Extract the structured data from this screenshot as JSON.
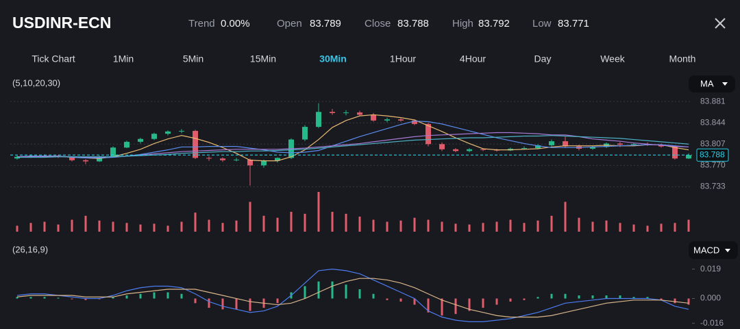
{
  "header": {
    "symbol": "USDINR-ECN",
    "stats": [
      {
        "label": "Trend",
        "value": "0.00%"
      },
      {
        "label": "Open",
        "value": "83.789"
      },
      {
        "label": "Close",
        "value": "83.788"
      },
      {
        "label": "High",
        "value": "83.792"
      },
      {
        "label": "Low",
        "value": "83.771"
      }
    ],
    "timeframes": [
      "Tick Chart",
      "1Min",
      "5Min",
      "15Min",
      "30Min",
      "1Hour",
      "4Hour",
      "Day",
      "Week",
      "Month"
    ],
    "active_timeframe": 4
  },
  "chart_data": [
    {
      "type": "candlestick",
      "params": "(5,10,20,30)",
      "indicator": "MA",
      "up_color": "#26b98a",
      "down_color": "#e05c6a",
      "grid": true,
      "ylim": [
        83.712,
        83.905
      ],
      "yticks": [
        83.881,
        83.844,
        83.807,
        {
          "value": 83.77,
          "label": "83.770"
        },
        83.733
      ],
      "price_marker": 83.788,
      "open": [
        83.782,
        83.785,
        83.787,
        83.786,
        83.785,
        83.779,
        83.777,
        83.785,
        83.801,
        83.811,
        83.816,
        83.825,
        83.829,
        83.83,
        83.783,
        83.782,
        83.779,
        83.78,
        83.77,
        83.778,
        83.783,
        83.815,
        83.837,
        83.863,
        83.861,
        83.862,
        83.858,
        83.848,
        83.85,
        83.848,
        83.842,
        83.807,
        83.798,
        83.795,
        83.798,
        83.797,
        83.796,
        83.799,
        83.8,
        83.805,
        83.812,
        83.803,
        83.799,
        83.802,
        83.808,
        83.806,
        83.807,
        83.806,
        83.803,
        83.782
      ],
      "high": [
        83.787,
        83.789,
        83.789,
        83.788,
        83.786,
        83.781,
        83.787,
        83.803,
        83.813,
        83.818,
        83.827,
        83.831,
        83.833,
        83.832,
        83.786,
        83.784,
        83.783,
        83.782,
        83.78,
        83.784,
        83.817,
        83.84,
        83.878,
        83.868,
        83.866,
        83.865,
        83.861,
        83.853,
        83.852,
        83.85,
        83.844,
        83.81,
        83.8,
        83.8,
        83.8,
        83.799,
        83.801,
        83.803,
        83.807,
        83.815,
        83.82,
        83.806,
        83.804,
        83.81,
        83.811,
        83.809,
        83.81,
        83.808,
        83.805,
        83.791
      ],
      "low": [
        83.78,
        83.783,
        83.784,
        83.783,
        83.777,
        83.772,
        83.776,
        83.784,
        83.8,
        83.808,
        83.814,
        83.822,
        83.826,
        83.781,
        83.778,
        83.776,
        83.777,
        83.735,
        83.766,
        83.775,
        83.781,
        83.812,
        83.835,
        83.858,
        83.857,
        83.856,
        83.846,
        83.845,
        83.846,
        83.84,
        83.803,
        83.795,
        83.793,
        83.793,
        83.795,
        83.794,
        83.795,
        83.797,
        83.798,
        83.803,
        83.8,
        83.796,
        83.797,
        83.8,
        83.802,
        83.804,
        83.804,
        83.801,
        83.78,
        83.781
      ],
      "close": [
        83.785,
        83.787,
        83.786,
        83.785,
        83.779,
        83.777,
        83.785,
        83.801,
        83.811,
        83.816,
        83.825,
        83.829,
        83.83,
        83.783,
        83.782,
        83.779,
        83.78,
        83.77,
        83.778,
        83.783,
        83.815,
        83.837,
        83.863,
        83.861,
        83.862,
        83.858,
        83.848,
        83.85,
        83.848,
        83.842,
        83.807,
        83.798,
        83.795,
        83.798,
        83.797,
        83.796,
        83.799,
        83.8,
        83.805,
        83.812,
        83.803,
        83.799,
        83.802,
        83.808,
        83.806,
        83.807,
        83.806,
        83.803,
        83.782,
        83.788
      ],
      "series": [
        {
          "color": "#e9b872",
          "values": [
            83.785,
            83.786,
            83.786,
            83.786,
            83.784,
            83.783,
            83.782,
            83.785,
            83.791,
            83.798,
            83.808,
            83.816,
            83.822,
            83.817,
            83.81,
            83.801,
            83.791,
            83.779,
            83.778,
            83.778,
            83.785,
            83.797,
            83.815,
            83.836,
            83.848,
            83.856,
            83.858,
            83.856,
            83.853,
            83.849,
            83.839,
            83.829,
            83.818,
            83.808,
            83.799,
            83.797,
            83.797,
            83.798,
            83.799,
            83.802,
            83.804,
            83.804,
            83.804,
            83.805,
            83.804,
            83.804,
            83.806,
            83.806,
            83.801,
            83.797
          ]
        },
        {
          "color": "#5b8def",
          "values": [
            83.785,
            83.786,
            83.786,
            83.786,
            83.784,
            83.783,
            83.783,
            83.784,
            83.786,
            83.789,
            83.793,
            83.797,
            83.802,
            83.802,
            83.803,
            83.803,
            83.803,
            83.8,
            83.797,
            83.793,
            83.792,
            83.793,
            83.796,
            83.804,
            83.812,
            83.82,
            83.827,
            83.834,
            83.841,
            83.847,
            83.846,
            83.842,
            83.836,
            83.83,
            83.824,
            83.818,
            83.813,
            83.808,
            83.804,
            83.801,
            83.801,
            83.801,
            83.802,
            83.803,
            83.804,
            83.805,
            83.806,
            83.806,
            83.804,
            83.802
          ]
        },
        {
          "color": "#a77bd5",
          "values": [
            83.785,
            83.785,
            83.785,
            83.786,
            83.785,
            83.784,
            83.784,
            83.785,
            83.786,
            83.788,
            83.79,
            83.792,
            83.794,
            83.795,
            83.796,
            83.797,
            83.798,
            83.798,
            83.798,
            83.798,
            83.799,
            83.8,
            83.802,
            83.804,
            83.806,
            83.808,
            83.811,
            83.814,
            83.817,
            83.82,
            83.822,
            83.823,
            83.824,
            83.825,
            83.826,
            83.827,
            83.827,
            83.826,
            83.825,
            83.823,
            83.823,
            83.82,
            83.816,
            83.814,
            83.812,
            83.809,
            83.807,
            83.805,
            83.803,
            83.802
          ]
        },
        {
          "color": "#4fb3c8",
          "values": [
            83.784,
            83.784,
            83.784,
            83.785,
            83.785,
            83.785,
            83.785,
            83.785,
            83.786,
            83.787,
            83.788,
            83.789,
            83.791,
            83.792,
            83.793,
            83.794,
            83.794,
            83.795,
            83.795,
            83.796,
            83.797,
            83.798,
            83.8,
            83.802,
            83.804,
            83.806,
            83.808,
            83.81,
            83.812,
            83.814,
            83.815,
            83.816,
            83.817,
            83.818,
            83.818,
            83.819,
            83.82,
            83.821,
            83.821,
            83.822,
            83.821,
            83.82,
            83.819,
            83.818,
            83.817,
            83.815,
            83.813,
            83.811,
            83.809,
            83.807
          ]
        }
      ]
    },
    {
      "type": "bar",
      "color": "#e05c6a",
      "ylim": [
        0,
        100
      ],
      "values": [
        15,
        22,
        25,
        18,
        30,
        40,
        28,
        25,
        22,
        18,
        20,
        15,
        25,
        48,
        30,
        22,
        28,
        75,
        40,
        35,
        50,
        45,
        100,
        50,
        45,
        38,
        30,
        25,
        28,
        35,
        30,
        25,
        20,
        18,
        22,
        25,
        30,
        22,
        28,
        40,
        75,
        35,
        25,
        28,
        22,
        18,
        15,
        20,
        22,
        30
      ]
    },
    {
      "type": "macd",
      "params": "(26,16,9)",
      "indicator": "MACD",
      "up_color": "#26b98a",
      "down_color": "#e05c6a",
      "ylim": [
        -0.0197,
        0.0246
      ],
      "yticks": [
        0.019,
        {
          "value": 0,
          "label": "0.000"
        },
        -0.016
      ],
      "histogram": [
        0.001,
        0.001,
        0.001,
        0.0005,
        -0.0005,
        -0.001,
        -0.0005,
        0.001,
        0.002,
        0.003,
        0.004,
        0.004,
        0.003,
        -0.003,
        -0.006,
        -0.007,
        -0.007,
        -0.008,
        -0.006,
        -0.003,
        0.004,
        0.008,
        0.011,
        0.011,
        0.009,
        0.006,
        0.003,
        -0.001,
        -0.002,
        -0.004,
        -0.009,
        -0.011,
        -0.01,
        -0.008,
        -0.006,
        -0.004,
        -0.002,
        -0.001,
        0.001,
        0.003,
        0.003,
        0.002,
        0.002,
        0.002,
        0.002,
        0.001,
        0.001,
        -0.001,
        -0.003,
        -0.004
      ],
      "series": [
        {
          "color": "#4c7cf0",
          "values": [
            0.002,
            0.003,
            0.003,
            0.002,
            0.001,
            0,
            0,
            0.002,
            0.005,
            0.007,
            0.008,
            0.008,
            0.007,
            0.003,
            -0.002,
            -0.005,
            -0.007,
            -0.009,
            -0.008,
            -0.005,
            0.002,
            0.01,
            0.018,
            0.019,
            0.018,
            0.016,
            0.012,
            0.008,
            0.004,
            0,
            -0.008,
            -0.012,
            -0.014,
            -0.015,
            -0.015,
            -0.014,
            -0.013,
            -0.011,
            -0.009,
            -0.006,
            -0.003,
            -0.002,
            -0.001,
            0,
            0,
            0,
            0,
            -0.001,
            -0.005,
            -0.007
          ]
        },
        {
          "color": "#d9b68a",
          "values": [
            0.001,
            0.002,
            0.002,
            0.002,
            0.002,
            0.001,
            0.001,
            0.001,
            0.003,
            0.004,
            0.005,
            0.006,
            0.006,
            0.006,
            0.004,
            0.002,
            0,
            -0.002,
            -0.003,
            -0.004,
            -0.003,
            0,
            0.004,
            0.008,
            0.011,
            0.013,
            0.013,
            0.012,
            0.01,
            0.007,
            0.003,
            -0.001,
            -0.004,
            -0.007,
            -0.009,
            -0.011,
            -0.012,
            -0.012,
            -0.012,
            -0.011,
            -0.009,
            -0.007,
            -0.005,
            -0.003,
            -0.002,
            -0.001,
            -0.001,
            -0.001,
            -0.002,
            -0.003
          ]
        }
      ]
    }
  ]
}
